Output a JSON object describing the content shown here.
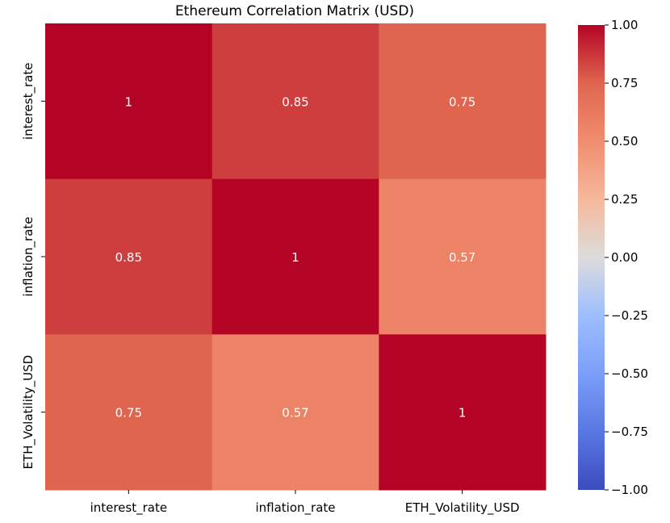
{
  "chart_data": {
    "type": "heatmap",
    "title": "Ethereum Correlation Matrix (USD)",
    "rows": [
      "interest_rate",
      "inflation_rate",
      "ETH_Volatility_USD"
    ],
    "columns": [
      "interest_rate",
      "inflation_rate",
      "ETH_Volatility_USD"
    ],
    "values": [
      [
        1,
        0.85,
        0.75
      ],
      [
        0.85,
        1,
        0.57
      ],
      [
        0.75,
        0.57,
        1
      ]
    ],
    "annotations": [
      [
        "1",
        "0.85",
        "0.75"
      ],
      [
        "0.85",
        "1",
        "0.57"
      ],
      [
        "0.75",
        "0.57",
        "1"
      ]
    ],
    "colormap": "coolwarm",
    "colorbar": {
      "range": [
        -1.0,
        1.0
      ],
      "ticks": [
        1.0,
        0.75,
        0.5,
        0.25,
        0.0,
        -0.25,
        -0.5,
        -0.75,
        -1.0
      ],
      "tick_labels": [
        "1.00",
        "0.75",
        "0.50",
        "0.25",
        "0.00",
        "−0.25",
        "−0.50",
        "−0.75",
        "−1.00"
      ]
    }
  }
}
